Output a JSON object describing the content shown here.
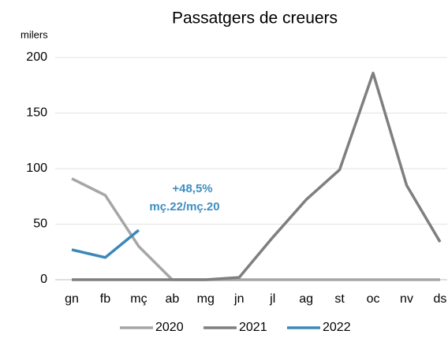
{
  "chart_data": {
    "type": "line",
    "title": "Passatgers de creuers",
    "y_label": "milers",
    "categories": [
      "gn",
      "fb",
      "mç",
      "ab",
      "mg",
      "jn",
      "jl",
      "ag",
      "st",
      "oc",
      "nv",
      "ds"
    ],
    "series": [
      {
        "name": "2020",
        "color": "#a6a6a6",
        "values": [
          91,
          76,
          30,
          0,
          0,
          0,
          0,
          0,
          0,
          0,
          0,
          0
        ]
      },
      {
        "name": "2021",
        "color": "#7f7f7f",
        "values": [
          0,
          0,
          0,
          0,
          0,
          2,
          38,
          72,
          99,
          186,
          85,
          34
        ]
      },
      {
        "name": "2022",
        "color": "#3b88b9",
        "values": [
          27,
          20,
          44.6,
          null,
          null,
          null,
          null,
          null,
          null,
          null,
          null,
          null
        ]
      }
    ],
    "annotations": [
      "+48,5%",
      "mç.22/mç.20"
    ],
    "ylim": [
      0,
      200
    ],
    "yticks": [
      0,
      50,
      100,
      150,
      200
    ],
    "grid": true,
    "legend": "bottom"
  }
}
